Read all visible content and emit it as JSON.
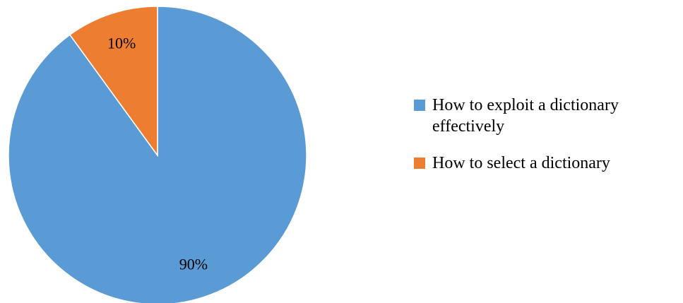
{
  "chart_data": {
    "type": "pie",
    "title": "",
    "categories": [
      "How to exploit a dictionary effectively",
      "How to select a dictionary"
    ],
    "values": [
      90,
      10
    ],
    "data_labels": [
      "90%",
      "10%"
    ],
    "colors": [
      "#5b9bd5",
      "#ed7d31"
    ],
    "legend_position": "right"
  },
  "legend": {
    "items": [
      {
        "label": "How to exploit a dictionary effectively"
      },
      {
        "label": "How to select a dictionary"
      }
    ]
  }
}
